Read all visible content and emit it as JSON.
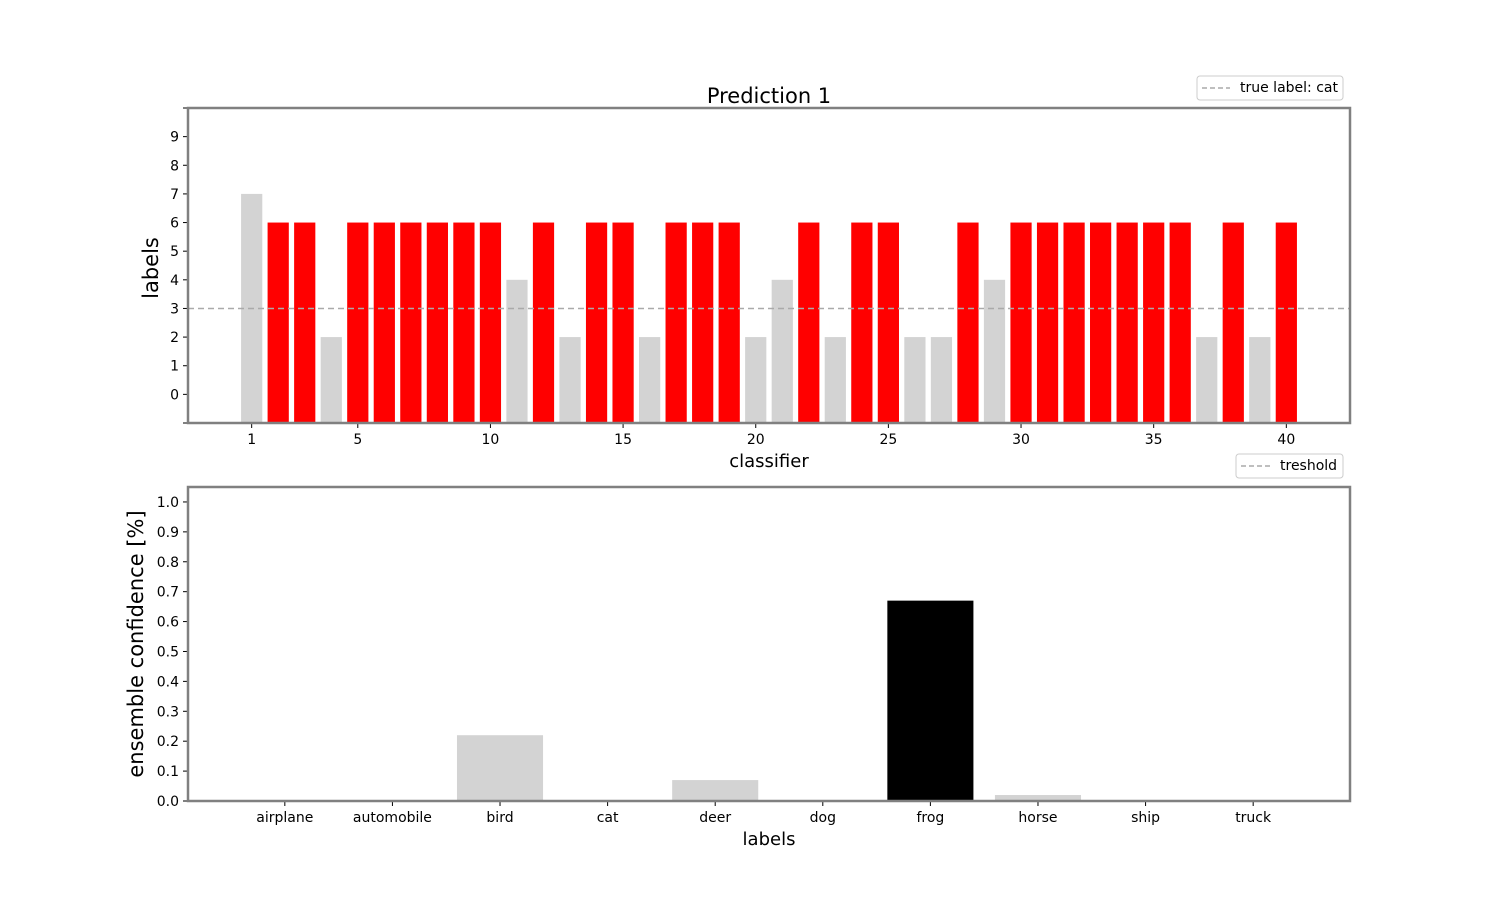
{
  "chart_data": [
    {
      "type": "bar",
      "title": "Prediction 1",
      "xlabel": "classifier",
      "ylabel": "labels",
      "x": [
        1,
        2,
        3,
        4,
        5,
        6,
        7,
        8,
        9,
        10,
        11,
        12,
        13,
        14,
        15,
        16,
        17,
        18,
        19,
        20,
        21,
        22,
        23,
        24,
        25,
        26,
        27,
        28,
        29,
        30,
        31,
        32,
        33,
        34,
        35,
        36,
        37,
        38,
        39,
        40
      ],
      "values": [
        7,
        6,
        6,
        2,
        6,
        6,
        6,
        6,
        6,
        6,
        4,
        6,
        2,
        6,
        6,
        2,
        6,
        6,
        6,
        2,
        4,
        6,
        2,
        6,
        6,
        2,
        2,
        6,
        4,
        6,
        6,
        6,
        6,
        6,
        6,
        6,
        2,
        6,
        2,
        6
      ],
      "highlight_value": 6,
      "highlight_color": "#ff0000",
      "base_color": "#d3d3d3",
      "xticks": [
        1,
        5,
        10,
        15,
        20,
        25,
        30,
        35,
        40
      ],
      "yticks": [
        0,
        1,
        2,
        3,
        4,
        5,
        6,
        7,
        8,
        9
      ],
      "ylim": [
        -1,
        10
      ],
      "xlim": [
        -1.4,
        42.4
      ],
      "reference_line": {
        "value": 3,
        "color": "#aaaaaa",
        "style": "dashed"
      },
      "legend": {
        "label": "true label: cat",
        "position": "top-right, above axes"
      }
    },
    {
      "type": "bar",
      "xlabel": "labels",
      "ylabel": "ensemble confidence [%]",
      "categories": [
        "airplane",
        "automobile",
        "bird",
        "cat",
        "deer",
        "dog",
        "frog",
        "horse",
        "ship",
        "truck"
      ],
      "values": [
        0.0,
        0.0,
        0.22,
        0.0,
        0.07,
        0.0,
        0.67,
        0.02,
        0.0,
        0.0
      ],
      "colors": [
        "#d3d3d3",
        "#d3d3d3",
        "#d3d3d3",
        "#d3d3d3",
        "#d3d3d3",
        "#d3d3d3",
        "#000000",
        "#d3d3d3",
        "#d3d3d3",
        "#d3d3d3"
      ],
      "yticks": [
        "0.0",
        "0.1",
        "0.2",
        "0.3",
        "0.4",
        "0.5",
        "0.6",
        "0.7",
        "0.8",
        "0.9",
        "1.0"
      ],
      "ylim": [
        0,
        1.05
      ],
      "xlim": [
        -0.9,
        9.9
      ],
      "legend": {
        "label": "treshold",
        "position": "top-right, above axes",
        "color": "#aaaaaa",
        "style": "dashed"
      }
    }
  ]
}
